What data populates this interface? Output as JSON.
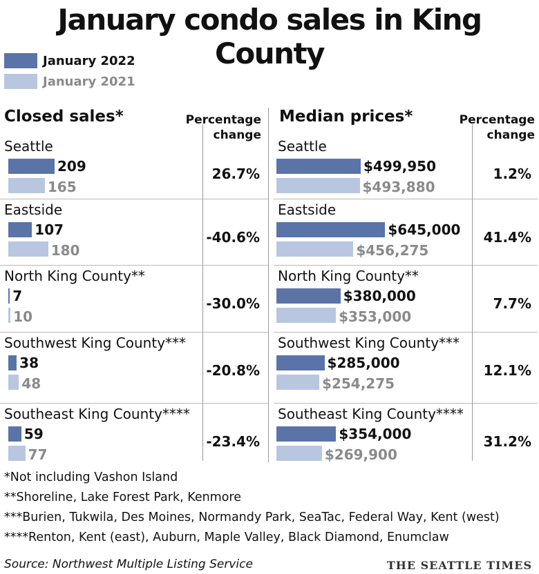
{
  "title": "January condo sales in King County",
  "legend": [
    {
      "label": "January 2022",
      "color": "#5a74a8"
    },
    {
      "label": "January 2021",
      "color": "#b8c6e0"
    }
  ],
  "headers": {
    "sales": "Closed sales*",
    "prices": "Median prices*",
    "pct_sales": "Percentage change",
    "pct_prices": "Percentage change"
  },
  "chart_data": [
    {
      "type": "bar",
      "title": "Closed sales*",
      "categories": [
        "Seattle",
        "Eastside",
        "North King County**",
        "Southwest King County***",
        "Southeast King County****"
      ],
      "series": [
        {
          "name": "January 2022",
          "values": [
            209,
            107,
            7,
            38,
            59
          ]
        },
        {
          "name": "January 2021",
          "values": [
            165,
            180,
            10,
            48,
            77
          ]
        }
      ],
      "labels_2022": [
        "209",
        "107",
        "7",
        "38",
        "59"
      ],
      "labels_2021": [
        "165",
        "180",
        "10",
        "48",
        "77"
      ],
      "pct_change": [
        "26.7%",
        "-40.6%",
        "-30.0%",
        "-20.8%",
        "-23.4%"
      ]
    },
    {
      "type": "bar",
      "title": "Median prices*",
      "categories": [
        "Seattle",
        "Eastside",
        "North King County**",
        "Southwest King County***",
        "Southeast King County****"
      ],
      "series": [
        {
          "name": "January 2022",
          "values": [
            499950,
            645000,
            380000,
            285000,
            354000
          ]
        },
        {
          "name": "January 2021",
          "values": [
            493880,
            456275,
            353000,
            254275,
            269900
          ]
        }
      ],
      "labels_2022": [
        "$499,950",
        "$645,000",
        "$380,000",
        "$285,000",
        "$354,000"
      ],
      "labels_2021": [
        "$493,880",
        "$456,275",
        "$353,000",
        "$254,275",
        "$269,900"
      ],
      "pct_change": [
        "1.2%",
        "41.4%",
        "7.7%",
        "12.1%",
        "31.2%"
      ]
    }
  ],
  "notes": [
    "*Not including Vashon Island",
    "**Shoreline, Lake Forest Park, Kenmore",
    "***Burien, Tukwila, Des Moines, Normandy Park, SeaTac, Federal Way, Kent (west)",
    "****Renton, Kent (east), Auburn, Maple Valley, Black Diamond, Enumclaw"
  ],
  "source": "Source: Northwest Multiple Listing Service",
  "brand": "THE SEATTLE TIMES"
}
